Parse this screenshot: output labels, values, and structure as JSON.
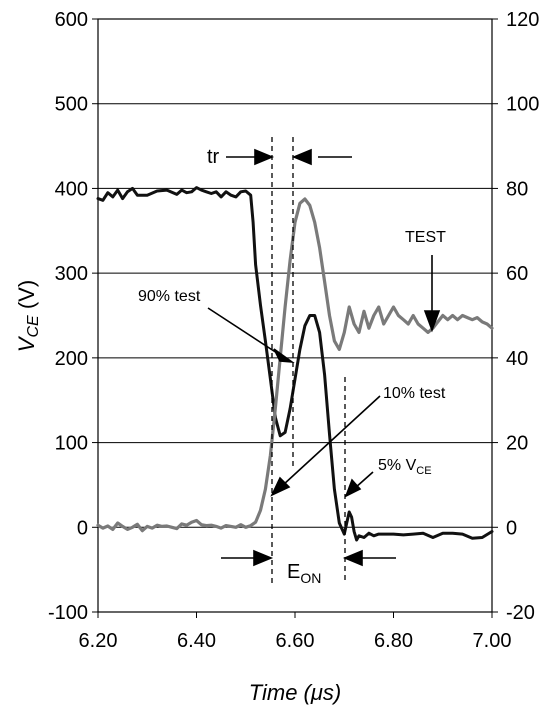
{
  "chart_data": {
    "type": "line",
    "xlabel": "Time (μs)",
    "ylabel": "VCE (V)",
    "ylabel_main": "V",
    "ylabel_sub": "CE",
    "ylabel_unit": " (V)",
    "xlim": [
      6.2,
      7.0
    ],
    "ylim": [
      -100,
      600
    ],
    "y2lim": [
      -20,
      120
    ],
    "grid": true,
    "x_ticks": [
      "6.20",
      "6.40",
      "6.60",
      "6.80",
      "7.00"
    ],
    "y_ticks": [
      "600",
      "500",
      "400",
      "300",
      "200",
      "100",
      "0",
      "-100"
    ],
    "y2_ticks": [
      "120",
      "100",
      "80",
      "60",
      "40",
      "20",
      "0",
      "-20"
    ],
    "series": [
      {
        "color": "#111111",
        "axis": "left",
        "points": [
          [
            6.2,
            388
          ],
          [
            6.21,
            386
          ],
          [
            6.22,
            395
          ],
          [
            6.23,
            390
          ],
          [
            6.24,
            398
          ],
          [
            6.25,
            388
          ],
          [
            6.26,
            396
          ],
          [
            6.27,
            400
          ],
          [
            6.28,
            392
          ],
          [
            6.3,
            392
          ],
          [
            6.32,
            397
          ],
          [
            6.34,
            398
          ],
          [
            6.36,
            393
          ],
          [
            6.37,
            398
          ],
          [
            6.38,
            395
          ],
          [
            6.39,
            396
          ],
          [
            6.4,
            401
          ],
          [
            6.41,
            398
          ],
          [
            6.42,
            396
          ],
          [
            6.43,
            394
          ],
          [
            6.44,
            396
          ],
          [
            6.45,
            390
          ],
          [
            6.46,
            396
          ],
          [
            6.47,
            392
          ],
          [
            6.48,
            390
          ],
          [
            6.49,
            396
          ],
          [
            6.5,
            397
          ],
          [
            6.51,
            392
          ],
          [
            6.515,
            360
          ],
          [
            6.52,
            310
          ],
          [
            6.53,
            262
          ],
          [
            6.54,
            220
          ],
          [
            6.55,
            175
          ],
          [
            6.56,
            130
          ],
          [
            6.57,
            108
          ],
          [
            6.58,
            112
          ],
          [
            6.59,
            140
          ],
          [
            6.6,
            175
          ],
          [
            6.61,
            210
          ],
          [
            6.62,
            238
          ],
          [
            6.63,
            250
          ],
          [
            6.64,
            250
          ],
          [
            6.65,
            230
          ],
          [
            6.66,
            180
          ],
          [
            6.67,
            110
          ],
          [
            6.68,
            45
          ],
          [
            6.69,
            5
          ],
          [
            6.7,
            -8
          ],
          [
            6.705,
            5
          ],
          [
            6.71,
            18
          ],
          [
            6.715,
            12
          ],
          [
            6.72,
            -5
          ],
          [
            6.725,
            -15
          ],
          [
            6.73,
            -10
          ],
          [
            6.74,
            -12
          ],
          [
            6.75,
            -7
          ],
          [
            6.76,
            -10
          ],
          [
            6.77,
            -8
          ],
          [
            6.78,
            -8
          ],
          [
            6.8,
            -8
          ],
          [
            6.82,
            -9
          ],
          [
            6.84,
            -8
          ],
          [
            6.86,
            -7
          ],
          [
            6.88,
            -12
          ],
          [
            6.9,
            -7
          ],
          [
            6.92,
            -7
          ],
          [
            6.94,
            -8
          ],
          [
            6.96,
            -13
          ],
          [
            6.98,
            -12
          ],
          [
            7.0,
            -5
          ]
        ]
      },
      {
        "color": "#7a7a7a",
        "axis": "right",
        "points": [
          [
            6.2,
            0.5
          ],
          [
            6.21,
            -0.2
          ],
          [
            6.22,
            0.3
          ],
          [
            6.23,
            -0.5
          ],
          [
            6.24,
            1.0
          ],
          [
            6.25,
            0.2
          ],
          [
            6.26,
            -0.5
          ],
          [
            6.27,
            0.0
          ],
          [
            6.28,
            0.7
          ],
          [
            6.29,
            -0.8
          ],
          [
            6.3,
            0.2
          ],
          [
            6.31,
            -0.2
          ],
          [
            6.32,
            0.5
          ],
          [
            6.33,
            0.2
          ],
          [
            6.34,
            0.3
          ],
          [
            6.35,
            0.0
          ],
          [
            6.36,
            -0.3
          ],
          [
            6.37,
            0.8
          ],
          [
            6.38,
            0.5
          ],
          [
            6.39,
            1.2
          ],
          [
            6.4,
            1.6
          ],
          [
            6.41,
            0.6
          ],
          [
            6.42,
            0.4
          ],
          [
            6.43,
            0.5
          ],
          [
            6.44,
            0.2
          ],
          [
            6.45,
            -0.2
          ],
          [
            6.46,
            0.4
          ],
          [
            6.47,
            0.2
          ],
          [
            6.48,
            0.0
          ],
          [
            6.49,
            0.6
          ],
          [
            6.5,
            0.0
          ],
          [
            6.51,
            0.4
          ],
          [
            6.52,
            1.2
          ],
          [
            6.53,
            4.0
          ],
          [
            6.54,
            9.0
          ],
          [
            6.55,
            17.0
          ],
          [
            6.56,
            28.0
          ],
          [
            6.57,
            40.0
          ],
          [
            6.58,
            52.0
          ],
          [
            6.59,
            63.0
          ],
          [
            6.6,
            72.0
          ],
          [
            6.61,
            76.5
          ],
          [
            6.62,
            77.5
          ],
          [
            6.63,
            76.0
          ],
          [
            6.64,
            72.0
          ],
          [
            6.65,
            66.0
          ],
          [
            6.66,
            58.0
          ],
          [
            6.67,
            50.0
          ],
          [
            6.68,
            44.0
          ],
          [
            6.69,
            42.0
          ],
          [
            6.7,
            46.0
          ],
          [
            6.71,
            52.0
          ],
          [
            6.72,
            48.0
          ],
          [
            6.73,
            46.0
          ],
          [
            6.74,
            51.0
          ],
          [
            6.75,
            47.0
          ],
          [
            6.76,
            50.0
          ],
          [
            6.77,
            52.0
          ],
          [
            6.78,
            48.0
          ],
          [
            6.79,
            50.0
          ],
          [
            6.8,
            52.0
          ],
          [
            6.81,
            50.0
          ],
          [
            6.82,
            49.0
          ],
          [
            6.83,
            48.0
          ],
          [
            6.84,
            50.0
          ],
          [
            6.85,
            48.0
          ],
          [
            6.86,
            47.0
          ],
          [
            6.87,
            46.0
          ],
          [
            6.88,
            47.0
          ],
          [
            6.89,
            48.5
          ],
          [
            6.9,
            50.0
          ],
          [
            6.91,
            49.0
          ],
          [
            6.92,
            50.0
          ],
          [
            6.93,
            49.0
          ],
          [
            6.94,
            50.0
          ],
          [
            6.95,
            49.5
          ],
          [
            6.96,
            49.0
          ],
          [
            6.97,
            49.5
          ],
          [
            6.98,
            48.5
          ],
          [
            6.99,
            48.0
          ],
          [
            7.0,
            47.0
          ]
        ]
      }
    ],
    "annotations": {
      "tr": "tr",
      "test_top": "TEST",
      "p90": "90% test",
      "p10": "10% test",
      "p5_main": "5% V",
      "p5_sub": "CE",
      "eon_main": "E",
      "eon_sub": "ON"
    }
  }
}
